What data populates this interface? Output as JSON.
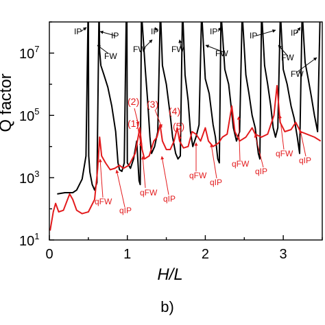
{
  "chart_data": {
    "type": "line",
    "xlabel": "H/L",
    "ylabel": "Q factor",
    "xlim": [
      0,
      3.5
    ],
    "ylim_log10": [
      1,
      8
    ],
    "log_scale_y": true,
    "x_ticks": [
      "0",
      "1",
      "2",
      "3"
    ],
    "y_tick_exponents": [
      "1",
      "3",
      "5",
      "7"
    ],
    "grid": false,
    "legend": "none",
    "series": [
      {
        "color": "#000000",
        "points": [
          [
            0.1,
            300
          ],
          [
            0.2,
            330
          ],
          [
            0.3,
            330
          ],
          [
            0.35,
            400
          ],
          [
            0.42,
            900
          ],
          [
            0.47,
            5000
          ],
          [
            0.495,
            100000000
          ],
          [
            0.5,
            100000000
          ],
          [
            0.505,
            5000
          ],
          [
            0.52,
            1500
          ],
          [
            0.55,
            600
          ],
          [
            0.58,
            400
          ],
          [
            0.61,
            700
          ],
          [
            0.635,
            100000000
          ],
          [
            0.64,
            100000000
          ],
          [
            0.645,
            12000000
          ],
          [
            0.66,
            4000000
          ],
          [
            0.7,
            2000000
          ],
          [
            0.75,
            800000
          ],
          [
            0.8,
            200000
          ],
          [
            0.85,
            30000
          ],
          [
            0.88,
            3000
          ],
          [
            0.9,
            1800
          ],
          [
            0.93,
            1600
          ],
          [
            0.96,
            3000
          ],
          [
            0.985,
            100000000
          ],
          [
            0.995,
            100000000
          ],
          [
            1.0,
            3000
          ],
          [
            1.04,
            2000
          ],
          [
            1.08,
            4000
          ],
          [
            1.12,
            15000
          ],
          [
            1.15,
            800
          ],
          [
            1.165,
            600
          ],
          [
            1.18,
            100000000
          ],
          [
            1.19,
            100000000
          ],
          [
            1.2,
            40000000
          ],
          [
            1.23,
            3000000
          ],
          [
            1.26,
            300000
          ],
          [
            1.29,
            20000
          ],
          [
            1.31,
            6000
          ],
          [
            1.35,
            10000
          ],
          [
            1.39,
            30000
          ],
          [
            1.42,
            100000000
          ],
          [
            1.43,
            100000000
          ],
          [
            1.45,
            4000000
          ],
          [
            1.5,
            1000000
          ],
          [
            1.55,
            100000
          ],
          [
            1.58,
            20000
          ],
          [
            1.62,
            6000
          ],
          [
            1.65,
            4000
          ],
          [
            1.68,
            5000
          ],
          [
            1.705,
            100000000
          ],
          [
            1.715,
            100000000
          ],
          [
            1.74,
            2000000
          ],
          [
            1.78,
            300000
          ],
          [
            1.81,
            30000
          ],
          [
            1.84,
            10000
          ],
          [
            1.88,
            20000
          ],
          [
            1.92,
            50000
          ],
          [
            1.95,
            100000000
          ],
          [
            1.96,
            100000000
          ],
          [
            2.0,
            1500000
          ],
          [
            2.05,
            500000
          ],
          [
            2.1,
            50000
          ],
          [
            2.13,
            20000
          ],
          [
            2.16,
            4000
          ],
          [
            2.18,
            3000
          ],
          [
            2.2,
            100000000
          ],
          [
            2.21,
            100000000
          ],
          [
            2.25,
            3000000
          ],
          [
            2.3,
            1000000
          ],
          [
            2.33,
            200000
          ],
          [
            2.36,
            40000
          ],
          [
            2.4,
            15000
          ],
          [
            2.44,
            30000
          ],
          [
            2.47,
            100000000
          ],
          [
            2.48,
            100000000
          ],
          [
            2.52,
            2000000
          ],
          [
            2.56,
            500000
          ],
          [
            2.6,
            100000
          ],
          [
            2.64,
            40000
          ],
          [
            2.68,
            6000
          ],
          [
            2.7,
            4000
          ],
          [
            2.72,
            100000000
          ],
          [
            2.73,
            100000000
          ],
          [
            2.76,
            4000000
          ],
          [
            2.8,
            1000000
          ],
          [
            2.84,
            200000
          ],
          [
            2.87,
            40000
          ],
          [
            2.9,
            20000
          ],
          [
            2.93,
            40000
          ],
          [
            2.96,
            100000000
          ],
          [
            2.97,
            100000000
          ],
          [
            3.0,
            3000000
          ],
          [
            3.05,
            1000000
          ],
          [
            3.1,
            200000
          ],
          [
            3.14,
            80000
          ],
          [
            3.18,
            20000
          ],
          [
            3.21,
            6000
          ],
          [
            3.24,
            100000000
          ],
          [
            3.25,
            100000000
          ],
          [
            3.28,
            5000000
          ],
          [
            3.32,
            1500000
          ],
          [
            3.36,
            400000
          ],
          [
            3.4,
            100000
          ],
          [
            3.44,
            30000
          ],
          [
            3.47,
            100000000
          ]
        ]
      },
      {
        "color": "#e31a1c",
        "points": [
          [
            0.01,
            20
          ],
          [
            0.05,
            80
          ],
          [
            0.08,
            150
          ],
          [
            0.12,
            80
          ],
          [
            0.18,
            90
          ],
          [
            0.26,
            300
          ],
          [
            0.3,
            200
          ],
          [
            0.35,
            90
          ],
          [
            0.42,
            70
          ],
          [
            0.5,
            80
          ],
          [
            0.58,
            200
          ],
          [
            0.62,
            2000
          ],
          [
            0.645,
            20000
          ],
          [
            0.67,
            5000
          ],
          [
            0.72,
            3000
          ],
          [
            0.78,
            1800
          ],
          [
            0.84,
            2000
          ],
          [
            0.9,
            2500
          ],
          [
            0.95,
            2000
          ],
          [
            1.02,
            2500
          ],
          [
            1.1,
            6000
          ],
          [
            1.16,
            40000
          ],
          [
            1.19,
            8000
          ],
          [
            1.22,
            4000
          ],
          [
            1.28,
            5000
          ],
          [
            1.34,
            15000
          ],
          [
            1.38,
            20000
          ],
          [
            1.42,
            50000
          ],
          [
            1.45,
            15000
          ],
          [
            1.5,
            8000
          ],
          [
            1.55,
            8000
          ],
          [
            1.6,
            15000
          ],
          [
            1.64,
            40000
          ],
          [
            1.67,
            15000
          ],
          [
            1.72,
            9000
          ],
          [
            1.78,
            10000
          ],
          [
            1.83,
            30000
          ],
          [
            1.88,
            25000
          ],
          [
            1.94,
            15000
          ],
          [
            2.0,
            40000
          ],
          [
            2.04,
            15000
          ],
          [
            2.1,
            10000
          ],
          [
            2.17,
            13000
          ],
          [
            2.22,
            20000
          ],
          [
            2.28,
            25000
          ],
          [
            2.34,
            200000
          ],
          [
            2.38,
            30000
          ],
          [
            2.44,
            15000
          ],
          [
            2.52,
            20000
          ],
          [
            2.6,
            40000
          ],
          [
            2.64,
            25000
          ],
          [
            2.72,
            20000
          ],
          [
            2.8,
            25000
          ],
          [
            2.88,
            100000
          ],
          [
            2.92,
            900000
          ],
          [
            2.96,
            60000
          ],
          [
            3.02,
            30000
          ],
          [
            3.1,
            35000
          ],
          [
            3.16,
            60000
          ],
          [
            3.22,
            30000
          ],
          [
            3.3,
            25000
          ],
          [
            3.4,
            20000
          ],
          [
            3.48,
            15000
          ]
        ]
      }
    ],
    "annotations": [
      {
        "text": "IP",
        "color": "black"
      },
      {
        "text": "FW",
        "color": "black"
      },
      {
        "text": "IP",
        "color": "black"
      },
      {
        "text": "IP",
        "color": "black"
      },
      {
        "text": "FW",
        "color": "black"
      },
      {
        "text": "IP",
        "color": "black"
      },
      {
        "text": "FW",
        "color": "black"
      },
      {
        "text": "IP",
        "color": "black"
      },
      {
        "text": "FW",
        "color": "black"
      },
      {
        "text": "IP",
        "color": "black"
      },
      {
        "text": "FW",
        "color": "black"
      },
      {
        "text": "(2)",
        "color": "red"
      },
      {
        "text": "(3)",
        "color": "red"
      },
      {
        "text": "(4)",
        "color": "red"
      },
      {
        "text": "(1)",
        "color": "red"
      },
      {
        "text": "(5)",
        "color": "red"
      },
      {
        "text": "qFW",
        "color": "red"
      },
      {
        "text": "qIP",
        "color": "red"
      },
      {
        "text": "qFW",
        "color": "red"
      },
      {
        "text": "qIP",
        "color": "red"
      },
      {
        "text": "qFW",
        "color": "red"
      },
      {
        "text": "qIP",
        "color": "red"
      },
      {
        "text": "qFW",
        "color": "red"
      },
      {
        "text": "qIP",
        "color": "red"
      },
      {
        "text": "qFW",
        "color": "red"
      },
      {
        "text": "qIP",
        "color": "red"
      },
      {
        "text": "qFW",
        "color": "red"
      },
      {
        "text": "qIP",
        "color": "red"
      }
    ]
  },
  "panel_label": "b)"
}
